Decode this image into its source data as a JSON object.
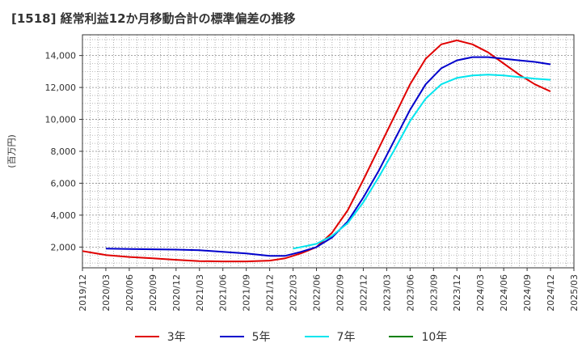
{
  "chart_data": {
    "type": "line",
    "title": "[1518]  経常利益12か月移動合計の標準偏差の推移",
    "ylabel": "(百万円)",
    "xlabel": "",
    "ylim": [
      700,
      15300
    ],
    "yticks": [
      2000,
      4000,
      6000,
      8000,
      10000,
      12000,
      14000
    ],
    "ytick_labels": [
      "2,000",
      "4,000",
      "6,000",
      "8,000",
      "10,000",
      "12,000",
      "14,000"
    ],
    "xlim": [
      "2019-12",
      "2025-03"
    ],
    "xticks": [
      "2019/12",
      "2020/03",
      "2020/06",
      "2020/09",
      "2020/12",
      "2021/03",
      "2021/06",
      "2021/09",
      "2021/12",
      "2022/03",
      "2022/06",
      "2022/09",
      "2022/12",
      "2023/03",
      "2023/06",
      "2023/09",
      "2023/12",
      "2024/03",
      "2024/06",
      "2024/09",
      "2024/12",
      "2025/03"
    ],
    "grid": true,
    "legend_position": "bottom",
    "series": [
      {
        "name": "3年",
        "color": "#e00000",
        "x": [
          "2019-12",
          "2020-03",
          "2020-06",
          "2020-09",
          "2020-12",
          "2021-03",
          "2021-06",
          "2021-09",
          "2021-12",
          "2022-02",
          "2022-04",
          "2022-06",
          "2022-08",
          "2022-10",
          "2022-12",
          "2023-02",
          "2023-04",
          "2023-06",
          "2023-08",
          "2023-10",
          "2023-12",
          "2024-02",
          "2024-04",
          "2024-06",
          "2024-08",
          "2024-10",
          "2024-12"
        ],
        "values": [
          1750,
          1500,
          1380,
          1300,
          1200,
          1120,
          1100,
          1100,
          1150,
          1300,
          1600,
          2000,
          2900,
          4300,
          6200,
          8200,
          10200,
          12200,
          13800,
          14700,
          14950,
          14700,
          14200,
          13500,
          12800,
          12200,
          11750
        ]
      },
      {
        "name": "5年",
        "color": "#0000cc",
        "x": [
          "2020-03",
          "2020-06",
          "2020-09",
          "2020-12",
          "2021-03",
          "2021-06",
          "2021-09",
          "2021-12",
          "2022-02",
          "2022-04",
          "2022-06",
          "2022-08",
          "2022-10",
          "2022-12",
          "2023-02",
          "2023-04",
          "2023-06",
          "2023-08",
          "2023-10",
          "2023-12",
          "2024-02",
          "2024-04",
          "2024-06",
          "2024-08",
          "2024-10",
          "2024-12"
        ],
        "values": [
          1900,
          1880,
          1860,
          1840,
          1800,
          1700,
          1600,
          1450,
          1450,
          1700,
          2000,
          2600,
          3600,
          5100,
          6800,
          8700,
          10600,
          12200,
          13200,
          13700,
          13900,
          13900,
          13800,
          13700,
          13600,
          13450
        ]
      },
      {
        "name": "7年",
        "color": "#00e5ee",
        "x": [
          "2022-03",
          "2022-06",
          "2022-08",
          "2022-10",
          "2022-12",
          "2023-02",
          "2023-04",
          "2023-06",
          "2023-08",
          "2023-10",
          "2023-12",
          "2024-02",
          "2024-04",
          "2024-06",
          "2024-08",
          "2024-10",
          "2024-12"
        ],
        "values": [
          1900,
          2200,
          2700,
          3500,
          4800,
          6400,
          8100,
          9900,
          11300,
          12200,
          12600,
          12750,
          12800,
          12750,
          12650,
          12550,
          12480
        ]
      },
      {
        "name": "10年",
        "color": "#008000",
        "x": [],
        "values": []
      }
    ]
  }
}
